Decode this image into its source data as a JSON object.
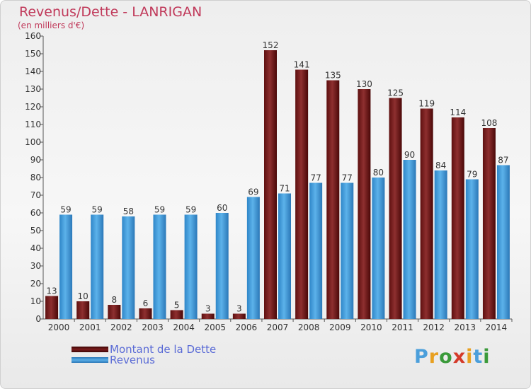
{
  "title": "Revenus/Dette - LANRIGAN",
  "subtitle": "(en milliers d'€)",
  "chart_data": {
    "type": "bar",
    "title": "Revenus/Dette - LANRIGAN",
    "subtitle": "(en milliers d'€)",
    "categories": [
      "2000",
      "2001",
      "2002",
      "2003",
      "2004",
      "2005",
      "2006",
      "2007",
      "2008",
      "2009",
      "2010",
      "2011",
      "2012",
      "2013",
      "2014"
    ],
    "series": [
      {
        "name": "Montant de la Dette",
        "color": "#7b1c1c",
        "values": [
          13,
          10,
          8,
          6,
          5,
          3,
          3,
          152,
          141,
          135,
          130,
          125,
          119,
          114,
          108
        ]
      },
      {
        "name": "Revenus",
        "color": "#4b9fdb",
        "values": [
          59,
          59,
          58,
          59,
          59,
          60,
          69,
          71,
          77,
          77,
          80,
          90,
          84,
          79,
          87
        ]
      }
    ],
    "ylim": [
      0,
      160
    ],
    "yticks": [
      0,
      10,
      20,
      30,
      40,
      50,
      60,
      70,
      80,
      90,
      100,
      110,
      120,
      130,
      140,
      150,
      160
    ],
    "grid": false,
    "legend_position": "bottom-left"
  },
  "legend": [
    {
      "label": "Montant de la Dette",
      "color": "#7b1c1c"
    },
    {
      "label": "Revenus",
      "color": "#4b9fdb"
    }
  ],
  "logo": {
    "letters": [
      "P",
      "r",
      "o",
      "x",
      "i",
      "t",
      "i"
    ],
    "colors": [
      "#4b9fdb",
      "#e8a020",
      "#3a9a3a",
      "#d43a2a",
      "#e8a020",
      "#4b9fdb",
      "#3a9a3a"
    ]
  }
}
